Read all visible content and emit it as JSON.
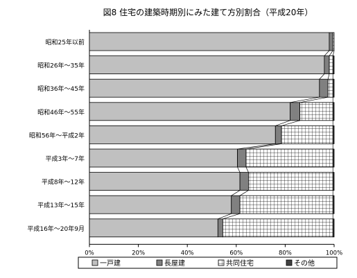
{
  "chart_data": {
    "type": "bar",
    "stacked": "percent",
    "orientation": "horizontal",
    "title": "図8 住宅の建築時期別にみた建て方別割合（平成20年）",
    "categories": [
      "昭和25年以前",
      "昭和26年～35年",
      "昭和36年～45年",
      "昭和46年～55年",
      "昭和56年～平成2年",
      "平成3年～7年",
      "平成8年～12年",
      "平成13年～15年",
      "平成16年～20年9月"
    ],
    "series": [
      {
        "name": "一戸建",
        "values": [
          98.0,
          96.0,
          94.0,
          82.0,
          76.0,
          60.5,
          61.5,
          58.0,
          52.5
        ],
        "fill": "#c0c0c0"
      },
      {
        "name": "長屋建",
        "values": [
          1.5,
          2.0,
          3.5,
          4.0,
          2.5,
          3.5,
          3.5,
          3.5,
          2.0
        ],
        "fill": "#808080"
      },
      {
        "name": "共同住宅",
        "values": [
          0.5,
          1.5,
          2.0,
          13.5,
          21.0,
          35.5,
          34.5,
          38.0,
          45.0
        ],
        "fill": "pattern-grid"
      },
      {
        "name": "その他",
        "values": [
          0.0,
          0.5,
          0.5,
          0.5,
          0.5,
          0.5,
          0.5,
          0.5,
          0.5
        ],
        "fill": "#404040"
      }
    ],
    "xlim": [
      0,
      100
    ],
    "xticks": [
      "0%",
      "20%",
      "40%",
      "60%",
      "80%",
      "100%"
    ],
    "tick_values": [
      0,
      20,
      40,
      60,
      80,
      100
    ],
    "grid": false,
    "series_lines": true,
    "legend_position": "bottom"
  }
}
